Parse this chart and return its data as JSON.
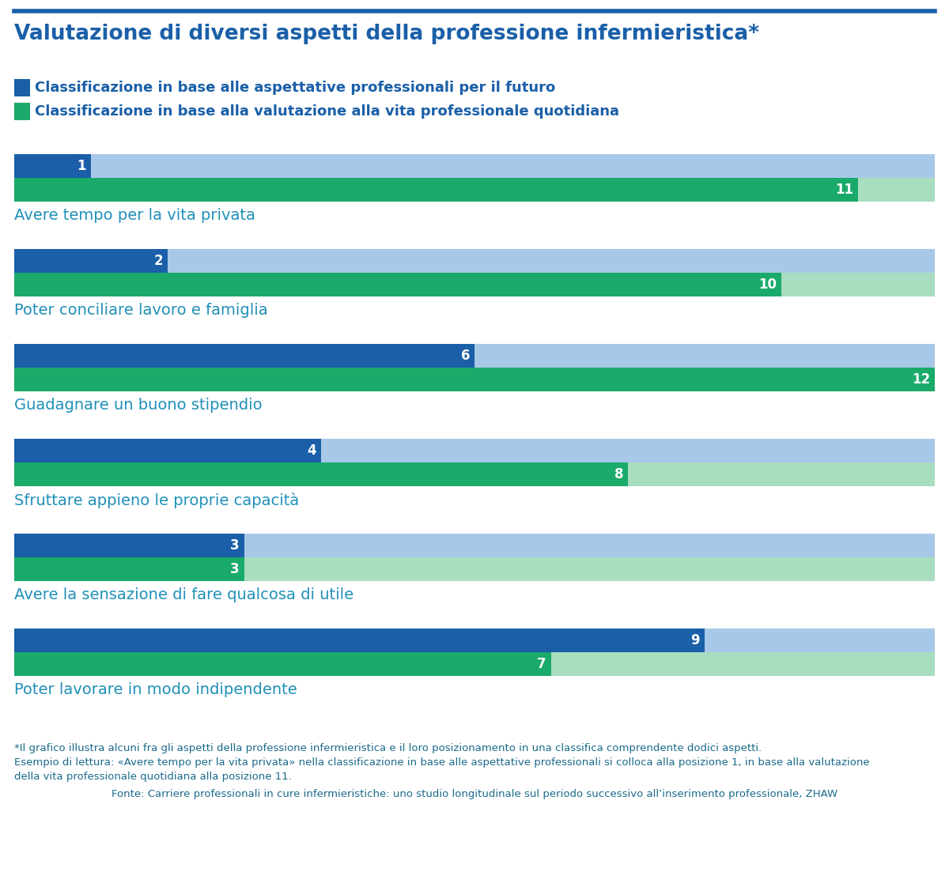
{
  "title": "Valutazione di diversi aspetti della professione infermieristica*",
  "legend1": "Classificazione in base alle aspettative professionali per il futuro",
  "legend2": "Classificazione in base alla valutazione alla vita professionale quotidiana",
  "total": 12,
  "categories": [
    {
      "label": "Avere tempo per la vita privata",
      "blue_rank": 1,
      "green_rank": 11
    },
    {
      "label": "Poter conciliare lavoro e famiglia",
      "blue_rank": 2,
      "green_rank": 10
    },
    {
      "label": "Guadagnare un buono stipendio",
      "blue_rank": 6,
      "green_rank": 12
    },
    {
      "label": "Sfruttare appieno le proprie capacità",
      "blue_rank": 4,
      "green_rank": 8
    },
    {
      "label": "Avere la sensazione di fare qualcosa di utile",
      "blue_rank": 3,
      "green_rank": 3
    },
    {
      "label": "Poter lavorare in modo indipendente",
      "blue_rank": 9,
      "green_rank": 7
    }
  ],
  "color_blue_dark": "#1a5fa8",
  "color_blue_light": "#a8c8e8",
  "color_green_dark": "#1aaa6a",
  "color_green_light": "#a8ddc0",
  "color_title": "#1a5fa8",
  "color_label": "#2090b8",
  "color_text": "#1a6a8a",
  "footnote1": "*Il grafico illustra alcuni fra gli aspetti della professione infermieristica e il loro posizionamento in una classifica comprendente dodici aspetti.",
  "footnote2": "Esempio di lettura: «Avere tempo per la vita privata» nella classificazione in base alle aspettative professionali si colloca alla posizione 1, in base alla valutazione",
  "footnote3": "della vita professionale quotidiana alla posizione 11.",
  "footnote4": "Fonte: Carriere professionali in cure infermieristiche: uno studio longitudinale sul periodo successivo all’inserimento professionale, ZHAW",
  "top_line_color": "#1a5fa8"
}
